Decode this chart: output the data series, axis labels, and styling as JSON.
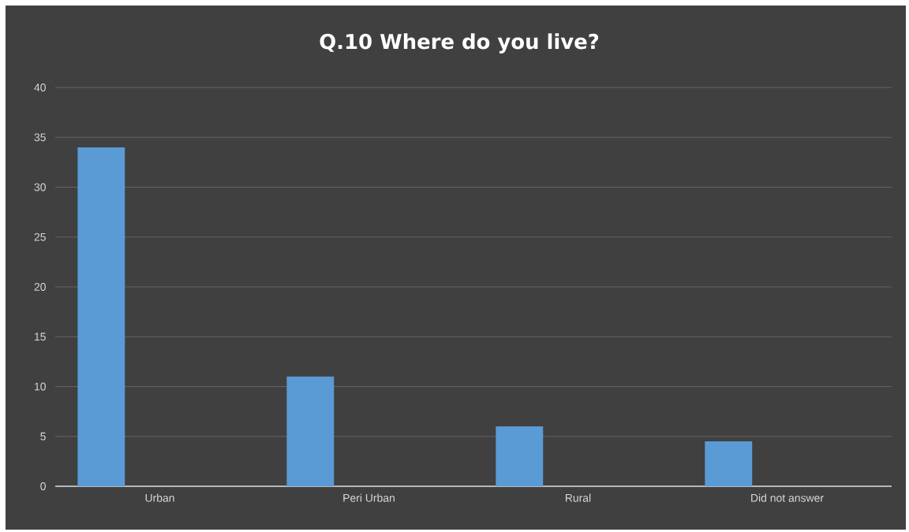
{
  "chart_data": {
    "type": "bar",
    "title": "Q.10 Where do you live?",
    "categories": [
      "Urban",
      "Peri Urban",
      "Rural",
      "Did not answer"
    ],
    "values": [
      34,
      11,
      6,
      4.5
    ],
    "color": "#5b9bd5",
    "ylim": [
      0,
      40
    ],
    "yticks": [
      0,
      5,
      10,
      15,
      20,
      25,
      30,
      35,
      40
    ],
    "grid": "y"
  }
}
